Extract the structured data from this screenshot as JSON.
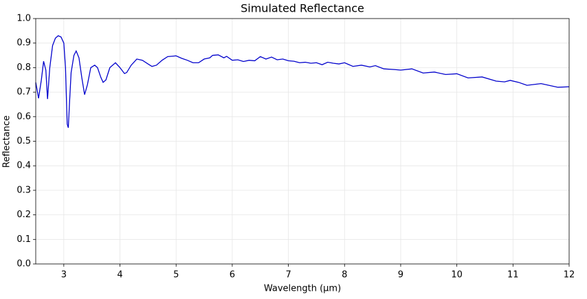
{
  "chart_data": {
    "type": "line",
    "title": "Simulated Reflectance",
    "x_label": "Wavelength (µm)",
    "y_label": "Reflectance",
    "x": [
      2.5,
      2.55,
      2.6,
      2.64,
      2.68,
      2.71,
      2.75,
      2.8,
      2.85,
      2.9,
      2.95,
      3.0,
      3.03,
      3.06,
      3.08,
      3.1,
      3.13,
      3.18,
      3.22,
      3.27,
      3.32,
      3.37,
      3.42,
      3.48,
      3.55,
      3.6,
      3.66,
      3.7,
      3.75,
      3.82,
      3.92,
      4.0,
      4.08,
      4.12,
      4.2,
      4.3,
      4.4,
      4.5,
      4.57,
      4.65,
      4.75,
      4.85,
      5.0,
      5.1,
      5.2,
      5.3,
      5.4,
      5.5,
      5.6,
      5.65,
      5.75,
      5.85,
      5.9,
      6.0,
      6.1,
      6.2,
      6.3,
      6.4,
      6.5,
      6.6,
      6.7,
      6.8,
      6.9,
      7.0,
      7.1,
      7.2,
      7.3,
      7.4,
      7.5,
      7.6,
      7.7,
      7.8,
      7.9,
      8.0,
      8.15,
      8.3,
      8.45,
      8.55,
      8.7,
      8.9,
      9.0,
      9.2,
      9.4,
      9.6,
      9.8,
      10.0,
      10.2,
      10.45,
      10.7,
      10.85,
      10.95,
      11.1,
      11.25,
      11.5,
      11.8,
      12.0
    ],
    "series": [
      {
        "name": "Reflectance",
        "color": "#0000cc",
        "values": [
          0.74,
          0.675,
          0.75,
          0.826,
          0.79,
          0.672,
          0.8,
          0.89,
          0.92,
          0.93,
          0.925,
          0.9,
          0.8,
          0.57,
          0.555,
          0.65,
          0.78,
          0.85,
          0.868,
          0.84,
          0.76,
          0.69,
          0.73,
          0.8,
          0.81,
          0.8,
          0.76,
          0.74,
          0.75,
          0.8,
          0.82,
          0.8,
          0.776,
          0.78,
          0.81,
          0.835,
          0.83,
          0.815,
          0.805,
          0.81,
          0.83,
          0.845,
          0.848,
          0.838,
          0.83,
          0.82,
          0.82,
          0.835,
          0.84,
          0.85,
          0.852,
          0.84,
          0.846,
          0.83,
          0.832,
          0.825,
          0.83,
          0.828,
          0.845,
          0.835,
          0.843,
          0.832,
          0.835,
          0.828,
          0.826,
          0.82,
          0.822,
          0.818,
          0.82,
          0.812,
          0.822,
          0.818,
          0.815,
          0.82,
          0.805,
          0.81,
          0.803,
          0.808,
          0.795,
          0.792,
          0.79,
          0.795,
          0.778,
          0.782,
          0.772,
          0.775,
          0.758,
          0.762,
          0.745,
          0.742,
          0.748,
          0.74,
          0.728,
          0.735,
          0.72,
          0.722
        ]
      }
    ],
    "xlim": [
      2.5,
      12
    ],
    "xticks": [
      3,
      4,
      5,
      6,
      7,
      8,
      9,
      10,
      11,
      12
    ],
    "ylim": [
      0,
      1
    ],
    "yticks": [
      {
        "value": 0,
        "label": "0.0"
      },
      {
        "value": 0.1,
        "label": "0.1"
      },
      {
        "value": 0.2,
        "label": "0.2"
      },
      {
        "value": 0.3,
        "label": "0.3"
      },
      {
        "value": 0.4,
        "label": "0.4"
      },
      {
        "value": 0.5,
        "label": "0.5"
      },
      {
        "value": 0.6,
        "label": "0.6"
      },
      {
        "value": 0.7,
        "label": "0.7"
      },
      {
        "value": 0.8,
        "label": "0.8"
      },
      {
        "value": 0.9,
        "label": "0.9"
      },
      {
        "value": 1,
        "label": "1.0"
      }
    ],
    "grid": true
  }
}
